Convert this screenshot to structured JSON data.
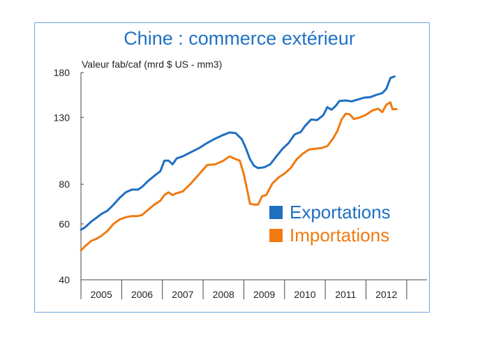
{
  "chart_data": {
    "type": "line",
    "title": "Chine : commerce extérieur",
    "ylabel": "Valeur fab/caf (mrd $ US - mm3)",
    "xlabel": "",
    "yscale": "log",
    "ylim": [
      40,
      180
    ],
    "yticks": [
      40,
      60,
      80,
      130,
      180
    ],
    "xlim": [
      2004.5,
      2013.0
    ],
    "xticks": [
      2005,
      2006,
      2007,
      2008,
      2009,
      2010,
      2011,
      2012
    ],
    "grid": false,
    "legend_position": "bottom-right",
    "colors": {
      "Exportations": "#1f6fc0",
      "Importations": "#f07a10"
    },
    "series": [
      {
        "name": "Exportations",
        "color": "#1f6fc0",
        "points": [
          [
            2004.5,
            57.5
          ],
          [
            2004.6,
            58.5
          ],
          [
            2004.75,
            61.0
          ],
          [
            2004.9,
            63.0
          ],
          [
            2005.0,
            64.5
          ],
          [
            2005.15,
            66.0
          ],
          [
            2005.3,
            69.0
          ],
          [
            2005.45,
            72.5
          ],
          [
            2005.6,
            75.5
          ],
          [
            2005.75,
            77.0
          ],
          [
            2005.9,
            77.0
          ],
          [
            2006.0,
            78.5
          ],
          [
            2006.15,
            82.0
          ],
          [
            2006.3,
            85.0
          ],
          [
            2006.45,
            88.0
          ],
          [
            2006.55,
            95.0
          ],
          [
            2006.65,
            95.0
          ],
          [
            2006.75,
            92.5
          ],
          [
            2006.85,
            96.5
          ],
          [
            2007.0,
            98.0
          ],
          [
            2007.2,
            101.0
          ],
          [
            2007.4,
            104.0
          ],
          [
            2007.6,
            108.0
          ],
          [
            2007.8,
            111.5
          ],
          [
            2008.0,
            114.5
          ],
          [
            2008.15,
            116.5
          ],
          [
            2008.3,
            116.0
          ],
          [
            2008.45,
            111.0
          ],
          [
            2008.55,
            104.0
          ],
          [
            2008.65,
            96.0
          ],
          [
            2008.75,
            91.5
          ],
          [
            2008.85,
            90.0
          ],
          [
            2009.0,
            90.5
          ],
          [
            2009.15,
            92.5
          ],
          [
            2009.3,
            98.0
          ],
          [
            2009.45,
            103.5
          ],
          [
            2009.6,
            108.0
          ],
          [
            2009.75,
            115.0
          ],
          [
            2009.9,
            117.0
          ],
          [
            2010.0,
            122.0
          ],
          [
            2010.15,
            128.0
          ],
          [
            2010.3,
            127.5
          ],
          [
            2010.45,
            132.0
          ],
          [
            2010.55,
            140.0
          ],
          [
            2010.65,
            137.5
          ],
          [
            2010.75,
            141.0
          ],
          [
            2010.85,
            146.5
          ],
          [
            2011.0,
            147.0
          ],
          [
            2011.15,
            146.0
          ],
          [
            2011.3,
            148.0
          ],
          [
            2011.45,
            150.0
          ],
          [
            2011.6,
            150.5
          ],
          [
            2011.75,
            153.0
          ],
          [
            2011.9,
            155.0
          ],
          [
            2012.0,
            160.0
          ],
          [
            2012.1,
            173.0
          ],
          [
            2012.2,
            175.0
          ]
        ]
      },
      {
        "name": "Importations",
        "color": "#f07a10",
        "points": [
          [
            2004.5,
            49.5
          ],
          [
            2004.6,
            51.0
          ],
          [
            2004.75,
            53.0
          ],
          [
            2004.9,
            54.0
          ],
          [
            2005.0,
            55.0
          ],
          [
            2005.15,
            57.0
          ],
          [
            2005.3,
            60.0
          ],
          [
            2005.45,
            62.0
          ],
          [
            2005.6,
            63.0
          ],
          [
            2005.75,
            63.5
          ],
          [
            2005.9,
            63.5
          ],
          [
            2006.0,
            64.0
          ],
          [
            2006.15,
            66.5
          ],
          [
            2006.3,
            69.0
          ],
          [
            2006.45,
            71.0
          ],
          [
            2006.55,
            74.0
          ],
          [
            2006.65,
            75.5
          ],
          [
            2006.75,
            74.0
          ],
          [
            2006.85,
            75.0
          ],
          [
            2007.0,
            76.0
          ],
          [
            2007.2,
            80.5
          ],
          [
            2007.4,
            86.0
          ],
          [
            2007.6,
            92.0
          ],
          [
            2007.8,
            92.5
          ],
          [
            2008.0,
            95.0
          ],
          [
            2008.15,
            98.0
          ],
          [
            2008.3,
            96.0
          ],
          [
            2008.4,
            95.0
          ],
          [
            2008.5,
            86.0
          ],
          [
            2008.6,
            75.0
          ],
          [
            2008.65,
            69.5
          ],
          [
            2008.75,
            69.0
          ],
          [
            2008.85,
            69.0
          ],
          [
            2008.95,
            73.5
          ],
          [
            2009.05,
            74.0
          ],
          [
            2009.2,
            80.5
          ],
          [
            2009.35,
            84.0
          ],
          [
            2009.5,
            86.5
          ],
          [
            2009.65,
            90.0
          ],
          [
            2009.8,
            96.0
          ],
          [
            2009.95,
            100.0
          ],
          [
            2010.1,
            103.0
          ],
          [
            2010.25,
            103.5
          ],
          [
            2010.4,
            104.0
          ],
          [
            2010.55,
            105.5
          ],
          [
            2010.7,
            112.0
          ],
          [
            2010.8,
            118.0
          ],
          [
            2010.9,
            128.0
          ],
          [
            2011.0,
            133.5
          ],
          [
            2011.1,
            133.0
          ],
          [
            2011.2,
            128.5
          ],
          [
            2011.35,
            130.0
          ],
          [
            2011.5,
            132.5
          ],
          [
            2011.65,
            136.5
          ],
          [
            2011.8,
            138.5
          ],
          [
            2011.9,
            135.0
          ],
          [
            2012.0,
            142.5
          ],
          [
            2012.1,
            145.0
          ],
          [
            2012.15,
            138.0
          ],
          [
            2012.25,
            138.0
          ]
        ]
      }
    ]
  }
}
